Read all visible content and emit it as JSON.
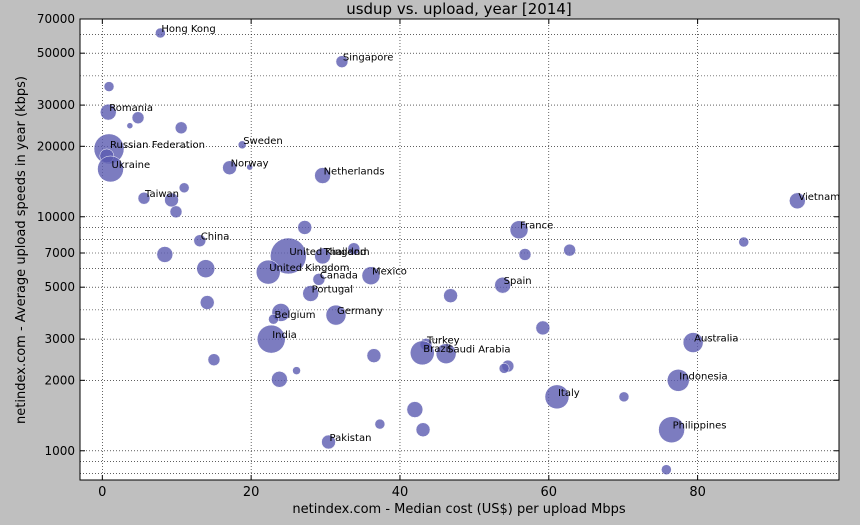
{
  "chart_data": {
    "type": "scatter",
    "title": "usdup vs. upload, year [2014]",
    "xlabel": "netindex.com - Median cost (US$) per upload Mbps",
    "ylabel": "netindex.com - Average upload speeds in year (kbps)",
    "xlim": [
      -3,
      99
    ],
    "ylim": [
      750,
      70000
    ],
    "yscale": "log",
    "grid": true,
    "marker_color": "#5b5bb0",
    "x_ticks": [
      {
        "value": 0,
        "label": "0"
      },
      {
        "value": 20,
        "label": "20"
      },
      {
        "value": 40,
        "label": "40"
      },
      {
        "value": 60,
        "label": "60"
      },
      {
        "value": 80,
        "label": "80"
      }
    ],
    "y_ticks": [
      {
        "value": 1000,
        "label": "1000"
      },
      {
        "value": 2000,
        "label": "2000"
      },
      {
        "value": 3000,
        "label": "3000"
      },
      {
        "value": 5000,
        "label": "5000"
      },
      {
        "value": 7000,
        "label": "7000"
      },
      {
        "value": 10000,
        "label": "10000"
      },
      {
        "value": 20000,
        "label": "20000"
      },
      {
        "value": 30000,
        "label": "30000"
      },
      {
        "value": 50000,
        "label": "50000"
      },
      {
        "value": 70000,
        "label": "70000"
      }
    ],
    "y_minor_grid": [
      800,
      900,
      4000,
      6000,
      8000,
      9000,
      40000,
      60000
    ],
    "points": [
      {
        "x": 7.8,
        "y": 61000,
        "size": 5,
        "label": "Hong Kong"
      },
      {
        "x": 32.2,
        "y": 46000,
        "size": 6,
        "label": "Singapore"
      },
      {
        "x": 0.9,
        "y": 36000,
        "size": 5
      },
      {
        "x": 0.8,
        "y": 28000,
        "size": 8,
        "label": "Romania"
      },
      {
        "x": 4.8,
        "y": 26500,
        "size": 6
      },
      {
        "x": 3.7,
        "y": 24500,
        "size": 3
      },
      {
        "x": 10.6,
        "y": 24000,
        "size": 6
      },
      {
        "x": 18.8,
        "y": 20300,
        "size": 4,
        "label": "Sweden"
      },
      {
        "x": 0.9,
        "y": 19500,
        "size": 15,
        "label": "Russian Federation"
      },
      {
        "x": 0.6,
        "y": 18200,
        "size": 7
      },
      {
        "x": 1.1,
        "y": 16000,
        "size": 13,
        "label": "Ukraine"
      },
      {
        "x": 17.1,
        "y": 16200,
        "size": 7,
        "label": "Norway"
      },
      {
        "x": 19.8,
        "y": 16300,
        "size": 3
      },
      {
        "x": 29.6,
        "y": 15000,
        "size": 8,
        "label": "Netherlands"
      },
      {
        "x": 11.0,
        "y": 13300,
        "size": 5
      },
      {
        "x": 5.6,
        "y": 12000,
        "size": 6,
        "label": "Taiwan"
      },
      {
        "x": 9.3,
        "y": 11800,
        "size": 7
      },
      {
        "x": 9.9,
        "y": 10500,
        "size": 6
      },
      {
        "x": 93.4,
        "y": 11700,
        "size": 8,
        "label": "Vietnam"
      },
      {
        "x": 27.2,
        "y": 9000,
        "size": 7
      },
      {
        "x": 56.0,
        "y": 8800,
        "size": 9,
        "label": "France"
      },
      {
        "x": 13.1,
        "y": 7900,
        "size": 6,
        "label": "China"
      },
      {
        "x": 86.2,
        "y": 7800,
        "size": 5
      },
      {
        "x": 8.4,
        "y": 6900,
        "size": 8
      },
      {
        "x": 25.0,
        "y": 6800,
        "size": 18,
        "label": "United Kingdom"
      },
      {
        "x": 29.6,
        "y": 6800,
        "size": 8,
        "label": "Thailand"
      },
      {
        "x": 33.8,
        "y": 7300,
        "size": 6
      },
      {
        "x": 56.8,
        "y": 6900,
        "size": 6
      },
      {
        "x": 62.8,
        "y": 7200,
        "size": 6
      },
      {
        "x": 13.9,
        "y": 6000,
        "size": 9
      },
      {
        "x": 22.3,
        "y": 5800,
        "size": 12,
        "label": "United Kingdom"
      },
      {
        "x": 29.1,
        "y": 5400,
        "size": 6,
        "label": "Canada"
      },
      {
        "x": 36.1,
        "y": 5600,
        "size": 9,
        "label": "Mexico"
      },
      {
        "x": 53.8,
        "y": 5100,
        "size": 8,
        "label": "Spain"
      },
      {
        "x": 28.0,
        "y": 4700,
        "size": 8,
        "label": "Portugal"
      },
      {
        "x": 46.8,
        "y": 4600,
        "size": 7
      },
      {
        "x": 14.1,
        "y": 4300,
        "size": 7
      },
      {
        "x": 24.0,
        "y": 3900,
        "size": 9
      },
      {
        "x": 31.4,
        "y": 3800,
        "size": 10,
        "label": "Germany"
      },
      {
        "x": 23.0,
        "y": 3650,
        "size": 5,
        "label": "Belgium"
      },
      {
        "x": 59.2,
        "y": 3350,
        "size": 7
      },
      {
        "x": 22.7,
        "y": 3000,
        "size": 14,
        "label": "India"
      },
      {
        "x": 79.4,
        "y": 2900,
        "size": 10,
        "label": "Australia"
      },
      {
        "x": 43.5,
        "y": 2850,
        "size": 6,
        "label": "Turkey"
      },
      {
        "x": 43.0,
        "y": 2620,
        "size": 12,
        "label": "Brazil"
      },
      {
        "x": 46.2,
        "y": 2600,
        "size": 10,
        "label": "Saudi Arabia"
      },
      {
        "x": 36.5,
        "y": 2550,
        "size": 7
      },
      {
        "x": 15.0,
        "y": 2450,
        "size": 6
      },
      {
        "x": 54.5,
        "y": 2300,
        "size": 6
      },
      {
        "x": 54.0,
        "y": 2250,
        "size": 5
      },
      {
        "x": 26.1,
        "y": 2200,
        "size": 4
      },
      {
        "x": 23.8,
        "y": 2020,
        "size": 8
      },
      {
        "x": 77.4,
        "y": 2000,
        "size": 11,
        "label": "Indonesia"
      },
      {
        "x": 61.1,
        "y": 1700,
        "size": 12,
        "label": "Italy"
      },
      {
        "x": 70.1,
        "y": 1700,
        "size": 5
      },
      {
        "x": 42.0,
        "y": 1500,
        "size": 8
      },
      {
        "x": 37.3,
        "y": 1300,
        "size": 5
      },
      {
        "x": 43.1,
        "y": 1230,
        "size": 7
      },
      {
        "x": 76.5,
        "y": 1230,
        "size": 13,
        "label": "Philippines"
      },
      {
        "x": 30.4,
        "y": 1090,
        "size": 7,
        "label": "Pakistan"
      },
      {
        "x": 75.8,
        "y": 830,
        "size": 5
      }
    ]
  }
}
